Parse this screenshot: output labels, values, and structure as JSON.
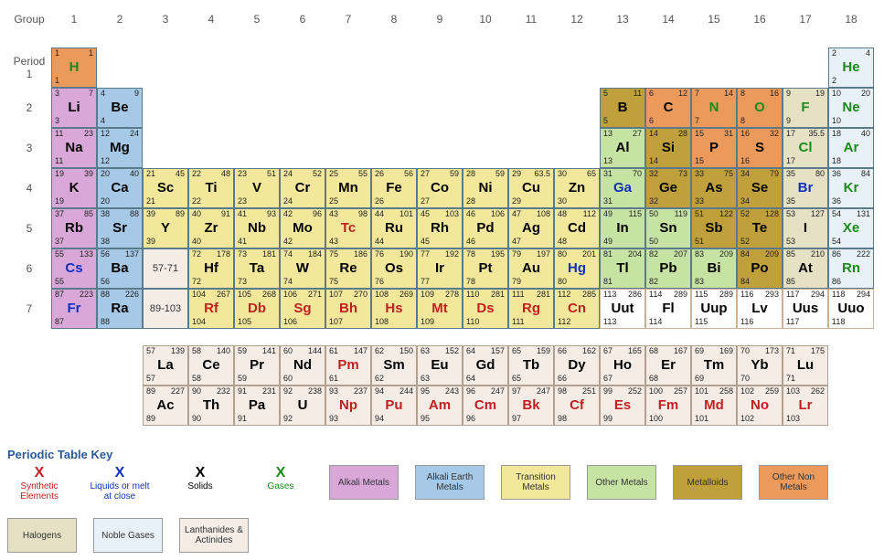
{
  "labels": {
    "group": "Group",
    "period": "Period",
    "groups": [
      "1",
      "2",
      "3",
      "4",
      "5",
      "6",
      "7",
      "8",
      "9",
      "10",
      "11",
      "12",
      "13",
      "14",
      "15",
      "16",
      "17",
      "18"
    ],
    "periods": [
      "1",
      "2",
      "3",
      "4",
      "5",
      "6",
      "7"
    ]
  },
  "categories": {
    "alkali": {
      "label": "Alkali Metals",
      "bg": "#d9a8d9"
    },
    "alkaline": {
      "label": "Alkali Earth Metals",
      "bg": "#a7c9e8"
    },
    "transition": {
      "label": "Transition Metals",
      "bg": "#f2e79a"
    },
    "other-metal": {
      "label": "Other Metals",
      "bg": "#c7e3a3"
    },
    "metalloid": {
      "label": "Metalloids",
      "bg": "#bfa03a"
    },
    "other-nonmetal": {
      "label": "Other Non Metals",
      "bg": "#ec9a5c"
    },
    "halogen": {
      "label": "Halogens",
      "bg": "#e6e0c4"
    },
    "noble": {
      "label": "Noble Gases",
      "bg": "#e8f1f7"
    },
    "lan-act": {
      "label": "Lanthanides & Actinides",
      "bg": "#f5ece6"
    }
  },
  "states": {
    "synthetic": {
      "label": "Synthetic Elements",
      "color": "#c02020"
    },
    "liquid": {
      "label": "Liquids or melt at close",
      "color": "#1030c0"
    },
    "solid": {
      "label": "Solids",
      "color": "#000000"
    },
    "gas": {
      "label": "Gases",
      "color": "#1a8a1a"
    }
  },
  "placeholders": {
    "lan": {
      "period": 6,
      "group": 3,
      "text": "57-71"
    },
    "act": {
      "period": 7,
      "group": 3,
      "text": "89-103"
    }
  },
  "elements": [
    {
      "z": 1,
      "sym": "H",
      "mass": "1",
      "period": 1,
      "group": 1,
      "cat": "other-nonmetal",
      "state": "gas"
    },
    {
      "z": 2,
      "sym": "He",
      "mass": "4",
      "period": 1,
      "group": 18,
      "cat": "noble",
      "state": "gas"
    },
    {
      "z": 3,
      "sym": "Li",
      "mass": "7",
      "period": 2,
      "group": 1,
      "cat": "alkali",
      "state": "solid"
    },
    {
      "z": 4,
      "sym": "Be",
      "mass": "9",
      "period": 2,
      "group": 2,
      "cat": "alkaline",
      "state": "solid"
    },
    {
      "z": 5,
      "sym": "B",
      "mass": "11",
      "period": 2,
      "group": 13,
      "cat": "metalloid",
      "state": "solid"
    },
    {
      "z": 6,
      "sym": "C",
      "mass": "12",
      "period": 2,
      "group": 14,
      "cat": "other-nonmetal",
      "state": "solid"
    },
    {
      "z": 7,
      "sym": "N",
      "mass": "14",
      "period": 2,
      "group": 15,
      "cat": "other-nonmetal",
      "state": "gas"
    },
    {
      "z": 8,
      "sym": "O",
      "mass": "16",
      "period": 2,
      "group": 16,
      "cat": "other-nonmetal",
      "state": "gas"
    },
    {
      "z": 9,
      "sym": "F",
      "mass": "19",
      "period": 2,
      "group": 17,
      "cat": "halogen",
      "state": "gas"
    },
    {
      "z": 10,
      "sym": "Ne",
      "mass": "20",
      "period": 2,
      "group": 18,
      "cat": "noble",
      "state": "gas"
    },
    {
      "z": 11,
      "sym": "Na",
      "mass": "23",
      "period": 3,
      "group": 1,
      "cat": "alkali",
      "state": "solid"
    },
    {
      "z": 12,
      "sym": "Mg",
      "mass": "24",
      "period": 3,
      "group": 2,
      "cat": "alkaline",
      "state": "solid"
    },
    {
      "z": 13,
      "sym": "Al",
      "mass": "27",
      "period": 3,
      "group": 13,
      "cat": "other-metal",
      "state": "solid"
    },
    {
      "z": 14,
      "sym": "Si",
      "mass": "28",
      "period": 3,
      "group": 14,
      "cat": "metalloid",
      "state": "solid"
    },
    {
      "z": 15,
      "sym": "P",
      "mass": "31",
      "period": 3,
      "group": 15,
      "cat": "other-nonmetal",
      "state": "solid"
    },
    {
      "z": 16,
      "sym": "S",
      "mass": "32",
      "period": 3,
      "group": 16,
      "cat": "other-nonmetal",
      "state": "solid"
    },
    {
      "z": 17,
      "sym": "Cl",
      "mass": "35.5",
      "period": 3,
      "group": 17,
      "cat": "halogen",
      "state": "gas"
    },
    {
      "z": 18,
      "sym": "Ar",
      "mass": "40",
      "period": 3,
      "group": 18,
      "cat": "noble",
      "state": "gas"
    },
    {
      "z": 19,
      "sym": "K",
      "mass": "39",
      "period": 4,
      "group": 1,
      "cat": "alkali",
      "state": "solid"
    },
    {
      "z": 20,
      "sym": "Ca",
      "mass": "40",
      "period": 4,
      "group": 2,
      "cat": "alkaline",
      "state": "solid"
    },
    {
      "z": 21,
      "sym": "Sc",
      "mass": "45",
      "period": 4,
      "group": 3,
      "cat": "transition",
      "state": "solid"
    },
    {
      "z": 22,
      "sym": "Ti",
      "mass": "48",
      "period": 4,
      "group": 4,
      "cat": "transition",
      "state": "solid"
    },
    {
      "z": 23,
      "sym": "V",
      "mass": "51",
      "period": 4,
      "group": 5,
      "cat": "transition",
      "state": "solid"
    },
    {
      "z": 24,
      "sym": "Cr",
      "mass": "52",
      "period": 4,
      "group": 6,
      "cat": "transition",
      "state": "solid"
    },
    {
      "z": 25,
      "sym": "Mn",
      "mass": "55",
      "period": 4,
      "group": 7,
      "cat": "transition",
      "state": "solid"
    },
    {
      "z": 26,
      "sym": "Fe",
      "mass": "56",
      "period": 4,
      "group": 8,
      "cat": "transition",
      "state": "solid"
    },
    {
      "z": 27,
      "sym": "Co",
      "mass": "59",
      "period": 4,
      "group": 9,
      "cat": "transition",
      "state": "solid"
    },
    {
      "z": 28,
      "sym": "Ni",
      "mass": "59",
      "period": 4,
      "group": 10,
      "cat": "transition",
      "state": "solid"
    },
    {
      "z": 29,
      "sym": "Cu",
      "mass": "63.5",
      "period": 4,
      "group": 11,
      "cat": "transition",
      "state": "solid"
    },
    {
      "z": 30,
      "sym": "Zn",
      "mass": "65",
      "period": 4,
      "group": 12,
      "cat": "transition",
      "state": "solid"
    },
    {
      "z": 31,
      "sym": "Ga",
      "mass": "70",
      "period": 4,
      "group": 13,
      "cat": "other-metal",
      "state": "liquid"
    },
    {
      "z": 32,
      "sym": "Ge",
      "mass": "73",
      "period": 4,
      "group": 14,
      "cat": "metalloid",
      "state": "solid"
    },
    {
      "z": 33,
      "sym": "As",
      "mass": "75",
      "period": 4,
      "group": 15,
      "cat": "metalloid",
      "state": "solid"
    },
    {
      "z": 34,
      "sym": "Se",
      "mass": "79",
      "period": 4,
      "group": 16,
      "cat": "metalloid",
      "state": "solid"
    },
    {
      "z": 35,
      "sym": "Br",
      "mass": "80",
      "period": 4,
      "group": 17,
      "cat": "halogen",
      "state": "liquid"
    },
    {
      "z": 36,
      "sym": "Kr",
      "mass": "84",
      "period": 4,
      "group": 18,
      "cat": "noble",
      "state": "gas"
    },
    {
      "z": 37,
      "sym": "Rb",
      "mass": "85",
      "period": 5,
      "group": 1,
      "cat": "alkali",
      "state": "solid"
    },
    {
      "z": 38,
      "sym": "Sr",
      "mass": "88",
      "period": 5,
      "group": 2,
      "cat": "alkaline",
      "state": "solid"
    },
    {
      "z": 39,
      "sym": "Y",
      "mass": "89",
      "period": 5,
      "group": 3,
      "cat": "transition",
      "state": "solid"
    },
    {
      "z": 40,
      "sym": "Zr",
      "mass": "91",
      "period": 5,
      "group": 4,
      "cat": "transition",
      "state": "solid"
    },
    {
      "z": 41,
      "sym": "Nb",
      "mass": "93",
      "period": 5,
      "group": 5,
      "cat": "transition",
      "state": "solid"
    },
    {
      "z": 42,
      "sym": "Mo",
      "mass": "96",
      "period": 5,
      "group": 6,
      "cat": "transition",
      "state": "solid"
    },
    {
      "z": 43,
      "sym": "Tc",
      "mass": "98",
      "period": 5,
      "group": 7,
      "cat": "transition",
      "state": "synthetic"
    },
    {
      "z": 44,
      "sym": "Ru",
      "mass": "101",
      "period": 5,
      "group": 8,
      "cat": "transition",
      "state": "solid"
    },
    {
      "z": 45,
      "sym": "Rh",
      "mass": "103",
      "period": 5,
      "group": 9,
      "cat": "transition",
      "state": "solid"
    },
    {
      "z": 46,
      "sym": "Pd",
      "mass": "106",
      "period": 5,
      "group": 10,
      "cat": "transition",
      "state": "solid"
    },
    {
      "z": 47,
      "sym": "Ag",
      "mass": "108",
      "period": 5,
      "group": 11,
      "cat": "transition",
      "state": "solid"
    },
    {
      "z": 48,
      "sym": "Cd",
      "mass": "112",
      "period": 5,
      "group": 12,
      "cat": "transition",
      "state": "solid"
    },
    {
      "z": 49,
      "sym": "In",
      "mass": "115",
      "period": 5,
      "group": 13,
      "cat": "other-metal",
      "state": "solid"
    },
    {
      "z": 50,
      "sym": "Sn",
      "mass": "119",
      "period": 5,
      "group": 14,
      "cat": "other-metal",
      "state": "solid"
    },
    {
      "z": 51,
      "sym": "Sb",
      "mass": "122",
      "period": 5,
      "group": 15,
      "cat": "metalloid",
      "state": "solid"
    },
    {
      "z": 52,
      "sym": "Te",
      "mass": "128",
      "period": 5,
      "group": 16,
      "cat": "metalloid",
      "state": "solid"
    },
    {
      "z": 53,
      "sym": "I",
      "mass": "127",
      "period": 5,
      "group": 17,
      "cat": "halogen",
      "state": "solid"
    },
    {
      "z": 54,
      "sym": "Xe",
      "mass": "131",
      "period": 5,
      "group": 18,
      "cat": "noble",
      "state": "gas"
    },
    {
      "z": 55,
      "sym": "Cs",
      "mass": "133",
      "period": 6,
      "group": 1,
      "cat": "alkali",
      "state": "liquid"
    },
    {
      "z": 56,
      "sym": "Ba",
      "mass": "137",
      "period": 6,
      "group": 2,
      "cat": "alkaline",
      "state": "solid"
    },
    {
      "z": 72,
      "sym": "Hf",
      "mass": "178",
      "period": 6,
      "group": 4,
      "cat": "transition",
      "state": "solid"
    },
    {
      "z": 73,
      "sym": "Ta",
      "mass": "181",
      "period": 6,
      "group": 5,
      "cat": "transition",
      "state": "solid"
    },
    {
      "z": 74,
      "sym": "W",
      "mass": "184",
      "period": 6,
      "group": 6,
      "cat": "transition",
      "state": "solid"
    },
    {
      "z": 75,
      "sym": "Re",
      "mass": "186",
      "period": 6,
      "group": 7,
      "cat": "transition",
      "state": "solid"
    },
    {
      "z": 76,
      "sym": "Os",
      "mass": "190",
      "period": 6,
      "group": 8,
      "cat": "transition",
      "state": "solid"
    },
    {
      "z": 77,
      "sym": "Ir",
      "mass": "192",
      "period": 6,
      "group": 9,
      "cat": "transition",
      "state": "solid"
    },
    {
      "z": 78,
      "sym": "Pt",
      "mass": "195",
      "period": 6,
      "group": 10,
      "cat": "transition",
      "state": "solid"
    },
    {
      "z": 79,
      "sym": "Au",
      "mass": "197",
      "period": 6,
      "group": 11,
      "cat": "transition",
      "state": "solid"
    },
    {
      "z": 80,
      "sym": "Hg",
      "mass": "201",
      "period": 6,
      "group": 12,
      "cat": "transition",
      "state": "liquid"
    },
    {
      "z": 81,
      "sym": "Tl",
      "mass": "204",
      "period": 6,
      "group": 13,
      "cat": "other-metal",
      "state": "solid"
    },
    {
      "z": 82,
      "sym": "Pb",
      "mass": "207",
      "period": 6,
      "group": 14,
      "cat": "other-metal",
      "state": "solid"
    },
    {
      "z": 83,
      "sym": "Bi",
      "mass": "209",
      "period": 6,
      "group": 15,
      "cat": "other-metal",
      "state": "solid"
    },
    {
      "z": 84,
      "sym": "Po",
      "mass": "209",
      "period": 6,
      "group": 16,
      "cat": "metalloid",
      "state": "solid"
    },
    {
      "z": 85,
      "sym": "At",
      "mass": "210",
      "period": 6,
      "group": 17,
      "cat": "halogen",
      "state": "solid"
    },
    {
      "z": 86,
      "sym": "Rn",
      "mass": "222",
      "period": 6,
      "group": 18,
      "cat": "noble",
      "state": "gas"
    },
    {
      "z": 87,
      "sym": "Fr",
      "mass": "223",
      "period": 7,
      "group": 1,
      "cat": "alkali",
      "state": "liquid"
    },
    {
      "z": 88,
      "sym": "Ra",
      "mass": "226",
      "period": 7,
      "group": 2,
      "cat": "alkaline",
      "state": "solid"
    },
    {
      "z": 104,
      "sym": "Rf",
      "mass": "267",
      "period": 7,
      "group": 4,
      "cat": "transition",
      "state": "synthetic"
    },
    {
      "z": 105,
      "sym": "Db",
      "mass": "268",
      "period": 7,
      "group": 5,
      "cat": "transition",
      "state": "synthetic"
    },
    {
      "z": 106,
      "sym": "Sg",
      "mass": "271",
      "period": 7,
      "group": 6,
      "cat": "transition",
      "state": "synthetic"
    },
    {
      "z": 107,
      "sym": "Bh",
      "mass": "270",
      "period": 7,
      "group": 7,
      "cat": "transition",
      "state": "synthetic"
    },
    {
      "z": 108,
      "sym": "Hs",
      "mass": "269",
      "period": 7,
      "group": 8,
      "cat": "transition",
      "state": "synthetic"
    },
    {
      "z": 109,
      "sym": "Mt",
      "mass": "278",
      "period": 7,
      "group": 9,
      "cat": "transition",
      "state": "synthetic"
    },
    {
      "z": 110,
      "sym": "Ds",
      "mass": "281",
      "period": 7,
      "group": 10,
      "cat": "transition",
      "state": "synthetic"
    },
    {
      "z": 111,
      "sym": "Rg",
      "mass": "281",
      "period": 7,
      "group": 11,
      "cat": "transition",
      "state": "synthetic"
    },
    {
      "z": 112,
      "sym": "Cn",
      "mass": "285",
      "period": 7,
      "group": 12,
      "cat": "transition",
      "state": "synthetic"
    },
    {
      "z": 113,
      "sym": "Uut",
      "mass": "286",
      "period": 7,
      "group": 13,
      "cat": "placeholder",
      "state": "solid"
    },
    {
      "z": 114,
      "sym": "Fl",
      "mass": "289",
      "period": 7,
      "group": 14,
      "cat": "placeholder",
      "state": "solid"
    },
    {
      "z": 115,
      "sym": "Uup",
      "mass": "289",
      "period": 7,
      "group": 15,
      "cat": "placeholder",
      "state": "solid"
    },
    {
      "z": 116,
      "sym": "Lv",
      "mass": "293",
      "period": 7,
      "group": 16,
      "cat": "placeholder",
      "state": "solid"
    },
    {
      "z": 117,
      "sym": "Uus",
      "mass": "294",
      "period": 7,
      "group": 17,
      "cat": "placeholder",
      "state": "solid"
    },
    {
      "z": 118,
      "sym": "Uuo",
      "mass": "294",
      "period": 7,
      "group": 18,
      "cat": "placeholder",
      "state": "solid"
    }
  ],
  "lanthanides": [
    {
      "z": 57,
      "sym": "La",
      "mass": "139"
    },
    {
      "z": 58,
      "sym": "Ce",
      "mass": "140"
    },
    {
      "z": 59,
      "sym": "Pr",
      "mass": "141"
    },
    {
      "z": 60,
      "sym": "Nd",
      "mass": "144"
    },
    {
      "z": 61,
      "sym": "Pm",
      "mass": "147",
      "state": "synthetic"
    },
    {
      "z": 62,
      "sym": "Sm",
      "mass": "150"
    },
    {
      "z": 63,
      "sym": "Eu",
      "mass": "152"
    },
    {
      "z": 64,
      "sym": "Gd",
      "mass": "157"
    },
    {
      "z": 65,
      "sym": "Tb",
      "mass": "159"
    },
    {
      "z": 66,
      "sym": "Dy",
      "mass": "162"
    },
    {
      "z": 67,
      "sym": "Ho",
      "mass": "165"
    },
    {
      "z": 68,
      "sym": "Er",
      "mass": "167"
    },
    {
      "z": 69,
      "sym": "Tm",
      "mass": "169"
    },
    {
      "z": 70,
      "sym": "Yb",
      "mass": "173"
    },
    {
      "z": 71,
      "sym": "Lu",
      "mass": "175"
    }
  ],
  "actinides": [
    {
      "z": 89,
      "sym": "Ac",
      "mass": "227"
    },
    {
      "z": 90,
      "sym": "Th",
      "mass": "232"
    },
    {
      "z": 91,
      "sym": "Pa",
      "mass": "231"
    },
    {
      "z": 92,
      "sym": "U",
      "mass": "238"
    },
    {
      "z": 93,
      "sym": "Np",
      "mass": "237",
      "state": "synthetic"
    },
    {
      "z": 94,
      "sym": "Pu",
      "mass": "244",
      "state": "synthetic"
    },
    {
      "z": 95,
      "sym": "Am",
      "mass": "243",
      "state": "synthetic"
    },
    {
      "z": 96,
      "sym": "Cm",
      "mass": "247",
      "state": "synthetic"
    },
    {
      "z": 97,
      "sym": "Bk",
      "mass": "247",
      "state": "synthetic"
    },
    {
      "z": 98,
      "sym": "Cf",
      "mass": "251",
      "state": "synthetic"
    },
    {
      "z": 99,
      "sym": "Es",
      "mass": "252",
      "state": "synthetic"
    },
    {
      "z": 100,
      "sym": "Fm",
      "mass": "257",
      "state": "synthetic"
    },
    {
      "z": 101,
      "sym": "Md",
      "mass": "258",
      "state": "synthetic"
    },
    {
      "z": 102,
      "sym": "No",
      "mass": "259",
      "state": "synthetic"
    },
    {
      "z": 103,
      "sym": "Lr",
      "mass": "262",
      "state": "synthetic"
    }
  ],
  "keyTitle": "Periodic Table Key",
  "keyStates": [
    "synthetic",
    "liquid",
    "solid",
    "gas"
  ],
  "keyCats": [
    "alkali",
    "alkaline",
    "transition",
    "other-metal",
    "metalloid",
    "other-nonmetal",
    "halogen",
    "noble",
    "lan-act"
  ]
}
